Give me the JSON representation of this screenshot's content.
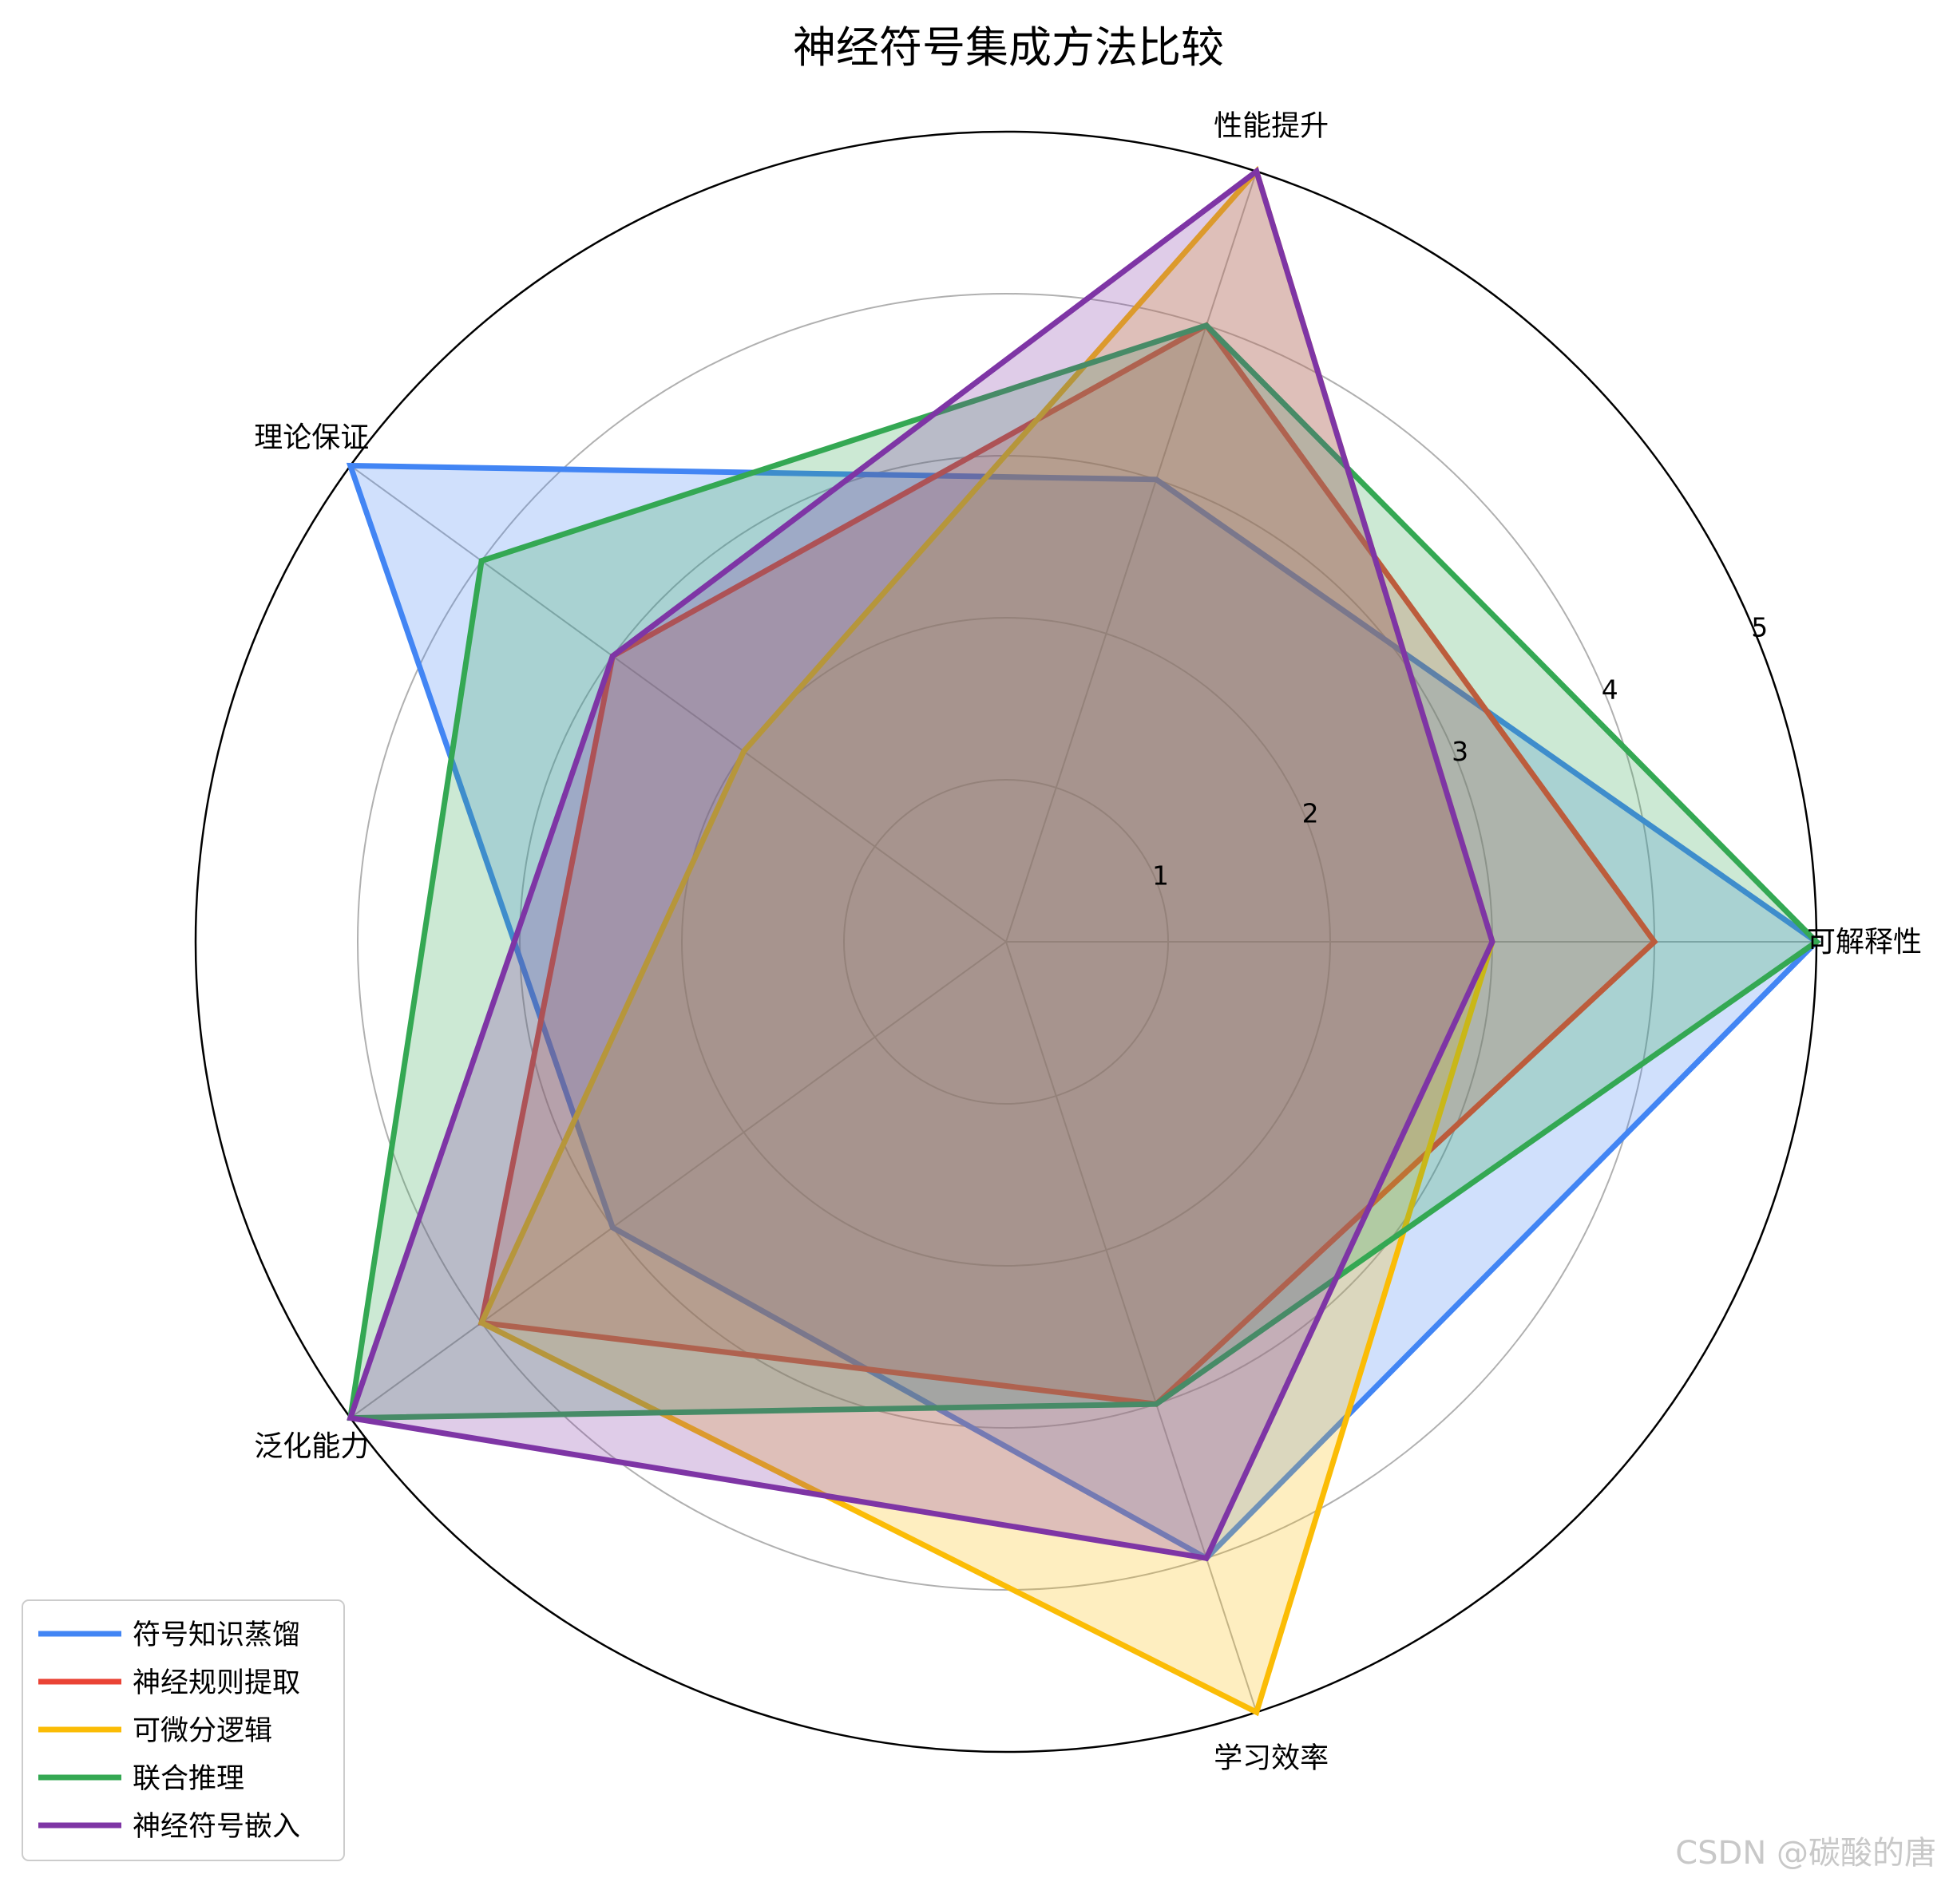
{
  "chart_data": {
    "type": "radar",
    "title": "神经符号集成方法比较",
    "axes": [
      "可解释性",
      "性能提升",
      "理论保证",
      "泛化能力",
      "学习效率"
    ],
    "rlim": [
      0,
      5
    ],
    "rticks": [
      "1",
      "2",
      "3",
      "4",
      "5"
    ],
    "grid": true,
    "legend_position": "lower-left",
    "series": [
      {
        "name": "符号知识蒸馏",
        "color": "#4285F4",
        "values": [
          5,
          3,
          5,
          3,
          4
        ]
      },
      {
        "name": "神经规则提取",
        "color": "#EA4335",
        "values": [
          4,
          4,
          3,
          4,
          3
        ]
      },
      {
        "name": "可微分逻辑",
        "color": "#FBBC05",
        "values": [
          3,
          5,
          2,
          4,
          5
        ]
      },
      {
        "name": "联合推理",
        "color": "#34A853",
        "values": [
          5,
          4,
          4,
          5,
          3
        ]
      },
      {
        "name": "神经符号嵌入",
        "color": "#7E35A5",
        "values": [
          3,
          5,
          3,
          5,
          4
        ]
      }
    ]
  },
  "watermark": "CSDN @碳酸的唐"
}
